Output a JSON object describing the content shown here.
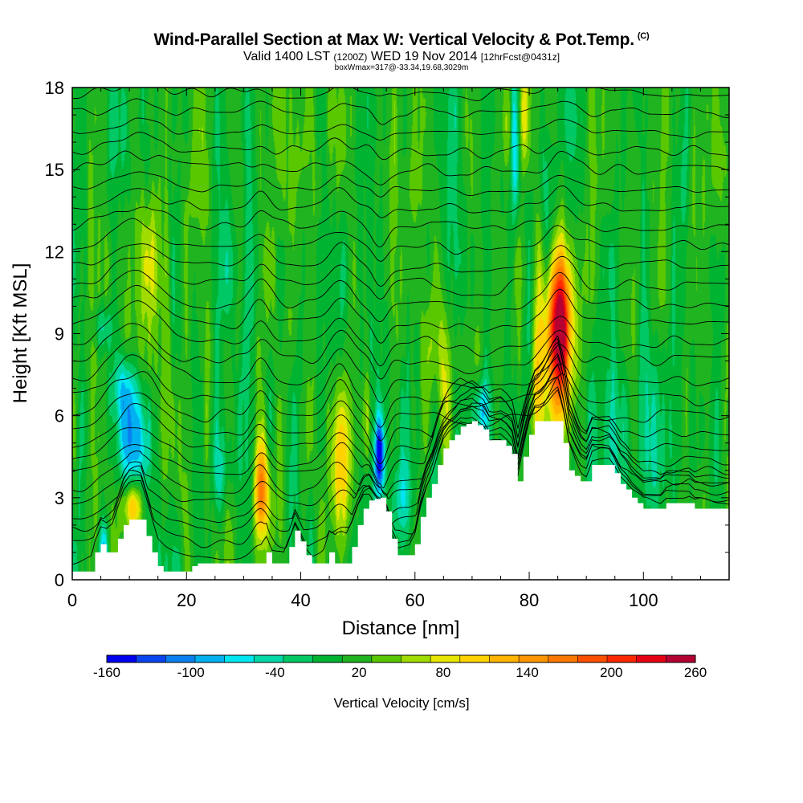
{
  "header": {
    "title": "Wind-Parallel Section at Max W: Vertical Velocity & Pot.Temp.",
    "copyright": "(C)",
    "valid_a": "Valid 1400 LST",
    "valid_z": "(1200Z)",
    "valid_b": "WED 19 Nov 2014",
    "valid_fcst": "[12hrFcst@0431z]",
    "box_info": "boxWmax=317@-33.34,19.68,3029m"
  },
  "chart_data": {
    "type": "heatmap",
    "title": "Wind-Parallel Section at Max W: Vertical Velocity & Pot.Temp.",
    "xlabel": "Distance [nm]",
    "ylabel": "Height [Kft MSL]",
    "xlim": [
      0,
      115
    ],
    "ylim": [
      0,
      18
    ],
    "xticks": [
      0,
      20,
      40,
      60,
      80,
      100
    ],
    "xtick_labels": [
      "0",
      "20",
      "40",
      "60",
      "80",
      "100"
    ],
    "yticks": [
      0,
      3,
      6,
      9,
      12,
      15,
      18
    ],
    "ytick_labels": [
      "0",
      "3",
      "6",
      "9",
      "12",
      "15",
      "18"
    ],
    "colorbar": {
      "title": "Vertical Velocity [cm/s]",
      "min": -160,
      "max": 260,
      "tick_values": [
        -160,
        -100,
        -40,
        20,
        80,
        140,
        200,
        260
      ],
      "tick_labels": [
        "-160",
        "-100",
        "-40",
        "20",
        "80",
        "140",
        "200",
        "260"
      ],
      "colors": [
        "#0000f0",
        "#0a46f0",
        "#0a80f0",
        "#00b0f0",
        "#00e6f0",
        "#00d8a8",
        "#00c864",
        "#00b432",
        "#20b420",
        "#5ac800",
        "#a0dc00",
        "#e6e600",
        "#ffd200",
        "#ffb400",
        "#ff9600",
        "#ff7800",
        "#ff5000",
        "#ff2800",
        "#e60014",
        "#b40032"
      ]
    },
    "background_w": 10,
    "terrain_kft": [
      [
        0,
        0.3
      ],
      [
        3,
        0.3
      ],
      [
        4,
        1.0
      ],
      [
        5,
        1.3
      ],
      [
        6,
        1.0
      ],
      [
        7,
        1.0
      ],
      [
        8,
        1.5
      ],
      [
        9,
        2.0
      ],
      [
        10,
        2.2
      ],
      [
        12,
        2.2
      ],
      [
        13,
        1.6
      ],
      [
        14,
        1.0
      ],
      [
        15,
        0.5
      ],
      [
        16,
        0.3
      ],
      [
        20,
        0.3
      ],
      [
        21,
        0.5
      ],
      [
        22,
        0.6
      ],
      [
        33,
        0.6
      ],
      [
        34,
        1.0
      ],
      [
        35,
        0.6
      ],
      [
        37,
        0.6
      ],
      [
        38,
        1.2
      ],
      [
        39,
        1.8
      ],
      [
        40,
        1.4
      ],
      [
        41,
        0.9
      ],
      [
        42,
        0.6
      ],
      [
        44,
        0.6
      ],
      [
        45,
        1.0
      ],
      [
        46,
        0.6
      ],
      [
        48,
        0.6
      ],
      [
        49,
        1.2
      ],
      [
        50,
        2.0
      ],
      [
        51,
        2.6
      ],
      [
        52,
        2.9
      ],
      [
        54,
        3.0
      ],
      [
        55,
        2.5
      ],
      [
        56,
        1.5
      ],
      [
        57,
        0.9
      ],
      [
        59,
        0.9
      ],
      [
        60,
        1.3
      ],
      [
        61,
        2.3
      ],
      [
        62,
        3.0
      ],
      [
        63,
        3.5
      ],
      [
        64,
        4.2
      ],
      [
        65,
        4.8
      ],
      [
        66,
        5.1
      ],
      [
        67,
        5.3
      ],
      [
        68,
        5.6
      ],
      [
        70,
        5.8
      ],
      [
        72,
        5.5
      ],
      [
        73,
        5.1
      ],
      [
        75,
        5.1
      ],
      [
        76,
        4.9
      ],
      [
        77,
        4.6
      ],
      [
        78,
        3.6
      ],
      [
        79,
        4.5
      ],
      [
        80,
        5.3
      ],
      [
        81,
        5.8
      ],
      [
        85,
        5.8
      ],
      [
        86,
        5.0
      ],
      [
        87,
        4.0
      ],
      [
        88,
        3.8
      ],
      [
        89,
        3.6
      ],
      [
        90,
        3.6
      ],
      [
        91,
        4.2
      ],
      [
        94,
        4.2
      ],
      [
        95,
        3.9
      ],
      [
        96,
        3.5
      ],
      [
        97,
        3.3
      ],
      [
        98,
        3.0
      ],
      [
        99,
        2.8
      ],
      [
        100,
        2.6
      ],
      [
        103,
        2.6
      ],
      [
        104,
        2.8
      ],
      [
        108,
        2.8
      ],
      [
        109,
        2.6
      ],
      [
        115,
        2.6
      ]
    ],
    "updrafts": [
      {
        "x": 85.3,
        "z": 9.2,
        "sx": 1.5,
        "sz": 2.0,
        "w": 235
      },
      {
        "x": 85.3,
        "z": 8.8,
        "sx": 2.4,
        "sz": 3.3,
        "w": 60
      },
      {
        "x": 33.2,
        "z": 3.3,
        "sx": 0.9,
        "sz": 1.3,
        "w": 140
      },
      {
        "x": 47.0,
        "z": 4.3,
        "sx": 1.4,
        "sz": 1.9,
        "w": 95
      },
      {
        "x": 51.5,
        "z": 5.8,
        "sx": 0.7,
        "sz": 1.4,
        "w": 75
      },
      {
        "x": 10.5,
        "z": 2.7,
        "sx": 1.2,
        "sz": 0.6,
        "w": 110
      },
      {
        "x": 13.5,
        "z": 11.5,
        "sx": 1.4,
        "sz": 1.6,
        "w": 60
      },
      {
        "x": 81.5,
        "z": 7.0,
        "sx": 0.6,
        "sz": 1.8,
        "w": 70
      },
      {
        "x": 79.0,
        "z": 17.0,
        "sx": 0.5,
        "sz": 1.5,
        "w": 75
      },
      {
        "x": 76.0,
        "z": 16.5,
        "sx": 0.6,
        "sz": 1.6,
        "w": 50
      },
      {
        "x": 65.0,
        "z": 8.0,
        "sx": 2.5,
        "sz": 2.0,
        "w": 45
      }
    ],
    "downdrafts": [
      {
        "x": 11.0,
        "z": 5.0,
        "sx": 2.2,
        "sz": 1.4,
        "w": -130
      },
      {
        "x": 9.0,
        "z": 7.0,
        "sx": 1.8,
        "sz": 0.9,
        "w": -70
      },
      {
        "x": 5.5,
        "z": 9.2,
        "sx": 1.2,
        "sz": 0.6,
        "w": -60
      },
      {
        "x": 5.5,
        "z": 1.0,
        "sx": 0.6,
        "sz": 0.8,
        "w": -110
      },
      {
        "x": 53.8,
        "z": 4.5,
        "sx": 0.6,
        "sz": 1.0,
        "w": -160
      },
      {
        "x": 71.5,
        "z": 6.2,
        "sx": 1.0,
        "sz": 0.8,
        "w": -90
      },
      {
        "x": 83.5,
        "z": 14.0,
        "sx": 1.0,
        "sz": 3.0,
        "w": -60
      },
      {
        "x": 77.5,
        "z": 16.0,
        "sx": 0.4,
        "sz": 2.0,
        "w": -70
      },
      {
        "x": 57.5,
        "z": 3.0,
        "sx": 0.9,
        "sz": 1.0,
        "w": -60
      },
      {
        "x": 26.0,
        "z": 4.0,
        "sx": 1.5,
        "sz": 1.0,
        "w": -40
      },
      {
        "x": 100.0,
        "z": 5.0,
        "sx": 8.0,
        "sz": 2.0,
        "w": -25
      }
    ],
    "isentrope_levels_kft": [
      0.8,
      1.3,
      1.8,
      2.3,
      2.8,
      3.3,
      3.8,
      4.3,
      4.8,
      5.4,
      6.0,
      6.6,
      7.3,
      8.0,
      8.7,
      9.4,
      10.1,
      10.8,
      11.5,
      12.2,
      12.9,
      13.6,
      14.3,
      15.0,
      15.7,
      16.4,
      17.1,
      17.8
    ],
    "isentrope_perturbations": [
      {
        "x": 11.0,
        "sx": 4.0,
        "dz": 1.6
      },
      {
        "x": 33.0,
        "sx": 1.5,
        "dz": 1.0
      },
      {
        "x": 47.0,
        "sx": 2.0,
        "dz": 1.2
      },
      {
        "x": 54.0,
        "sx": 1.2,
        "dz": -1.0
      },
      {
        "x": 85.5,
        "sx": 2.0,
        "dz": 1.4
      },
      {
        "x": 71.0,
        "sx": 3.0,
        "dz": -0.4
      }
    ]
  }
}
